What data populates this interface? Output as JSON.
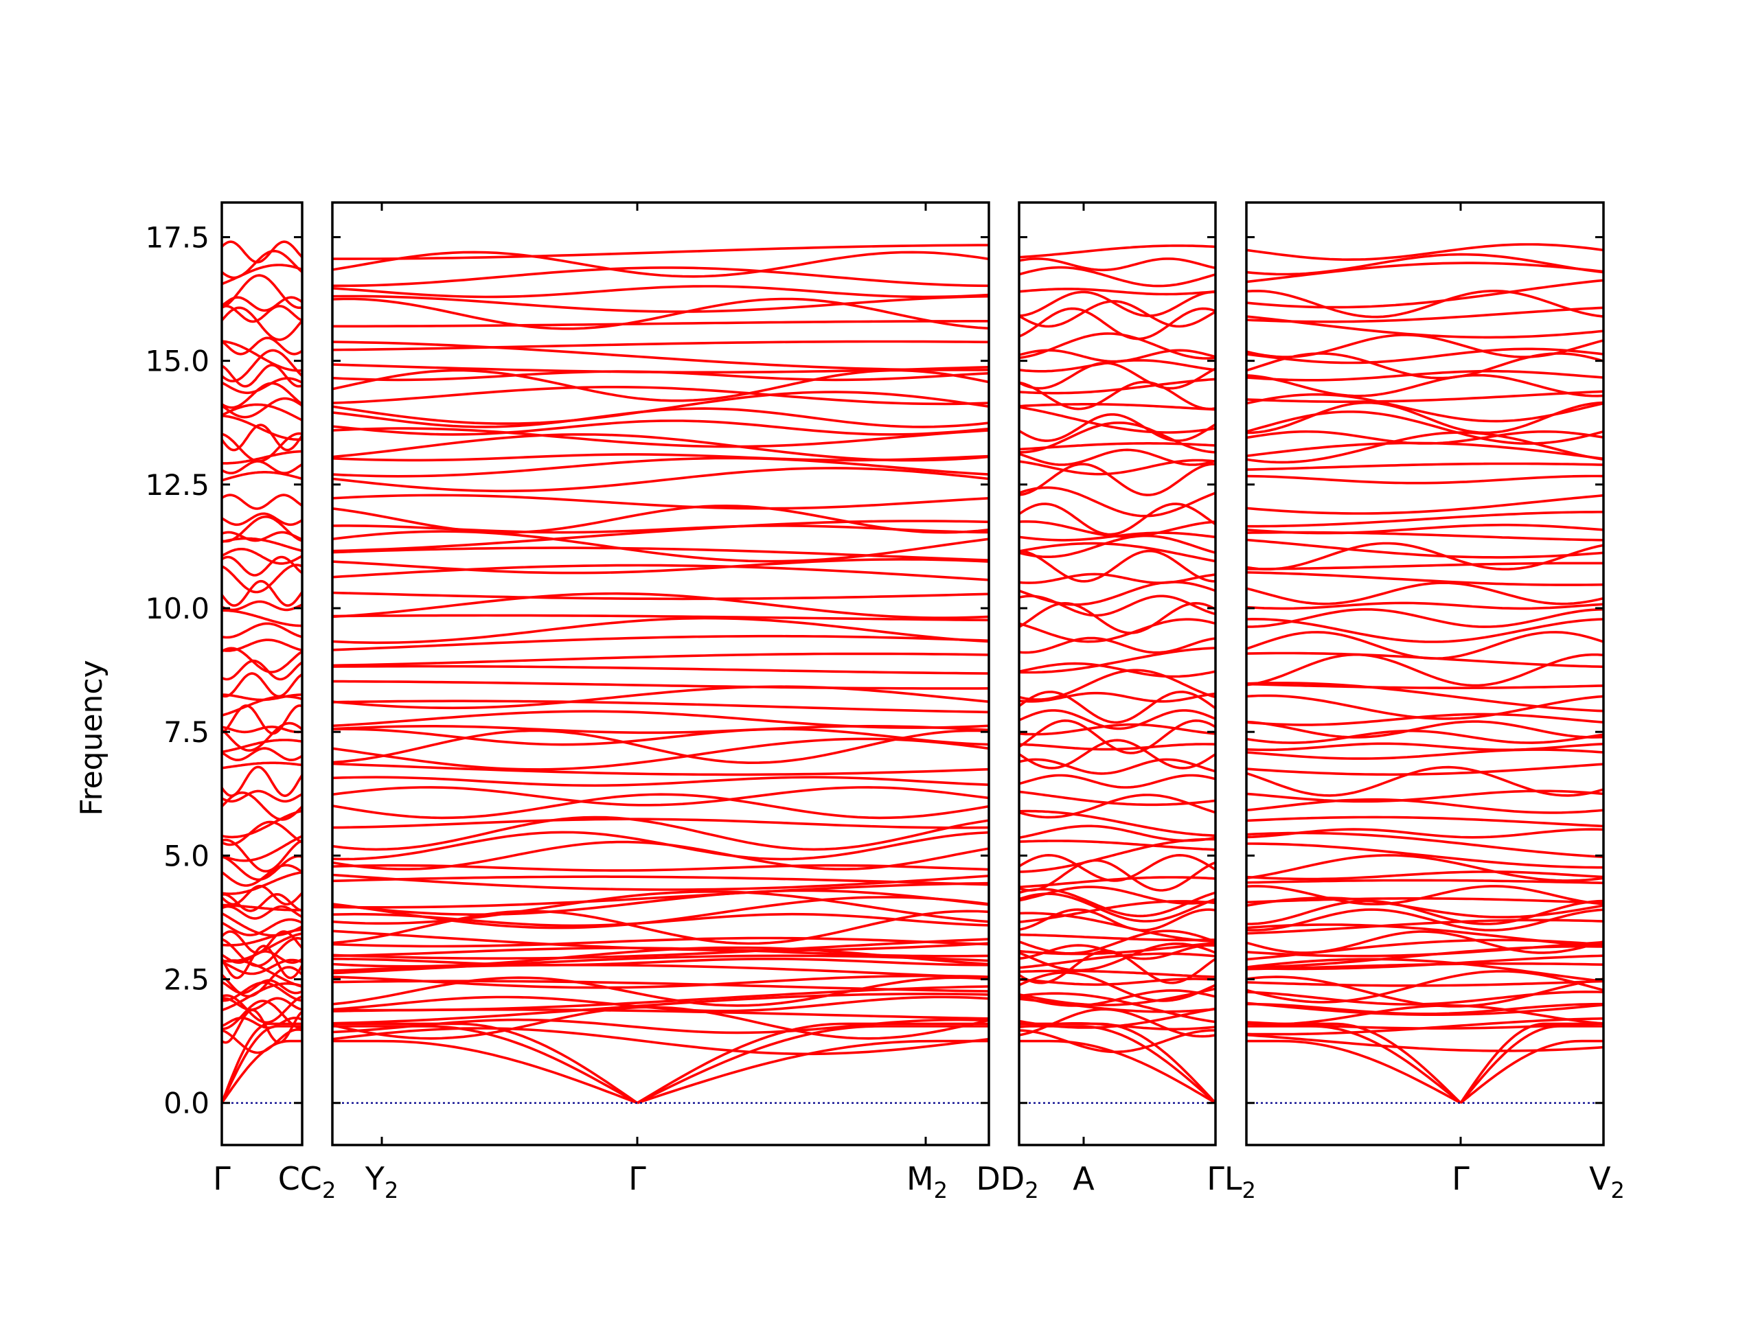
{
  "chart_data": {
    "type": "line",
    "title": "",
    "xlabel": "",
    "ylabel": "Frequency",
    "ylim": [
      -0.85,
      18.2
    ],
    "yticks": [
      0.0,
      2.5,
      5.0,
      7.5,
      10.0,
      12.5,
      15.0,
      17.5
    ],
    "ytick_labels": [
      "0.0",
      "2.5",
      "5.0",
      "7.5",
      "10.0",
      "12.5",
      "15.0",
      "17.5"
    ],
    "grid": false,
    "band_color": "#ff0000",
    "zero_line_color": "#00008b",
    "segments": [
      {
        "from": "Γ",
        "to": "C",
        "length": 0.12
      },
      {
        "from": "C₂",
        "to": "Y₂",
        "length": 0.07
      },
      {
        "from": "Y₂",
        "to": "Γ",
        "length": 0.39
      },
      {
        "from": "Γ",
        "to": "M₂",
        "length": 0.44
      },
      {
        "from": "M₂",
        "to": "D",
        "length": 0.1
      },
      {
        "from": "D₂",
        "to": "A",
        "length": 0.1
      },
      {
        "from": "A",
        "to": "Γ",
        "length": 0.2
      },
      {
        "from": "L₂",
        "to": "Γ",
        "length": 0.32
      },
      {
        "from": "Γ",
        "to": "V₂",
        "length": 0.22
      }
    ],
    "panels": [
      {
        "ticks": [
          "Γ",
          "C"
        ]
      },
      {
        "ticks": [
          "C₂",
          "Y₂",
          "Γ",
          "M₂",
          "D"
        ]
      },
      {
        "ticks": [
          "D₂",
          "A",
          "Γ"
        ]
      },
      {
        "ticks": [
          "L₂",
          "Γ",
          "V₂"
        ]
      }
    ],
    "x_tick_labels": [
      {
        "label": "Γ",
        "sub": ""
      },
      {
        "label": "CC",
        "sub": "2"
      },
      {
        "label": "Y",
        "sub": "2"
      },
      {
        "label": "Γ",
        "sub": ""
      },
      {
        "label": "M",
        "sub": "2"
      },
      {
        "label": "DD",
        "sub": "2"
      },
      {
        "label": "A",
        "sub": ""
      },
      {
        "label": "ΓL",
        "sub": "2"
      },
      {
        "label": "Γ",
        "sub": ""
      },
      {
        "label": "V",
        "sub": "2"
      }
    ],
    "gamma_acoustic_branches": "three acoustic branches reach 0.0 at every Γ point",
    "optical_band_levels": [
      1.25,
      1.55,
      1.62,
      1.78,
      1.9,
      2.0,
      2.12,
      2.25,
      2.35,
      2.45,
      2.6,
      2.75,
      2.85,
      2.95,
      3.05,
      3.15,
      3.25,
      3.35,
      3.55,
      3.7,
      3.85,
      3.95,
      4.05,
      4.2,
      4.45,
      4.6,
      4.75,
      5.0,
      5.2,
      5.45,
      5.65,
      6.0,
      6.2,
      6.5,
      6.8,
      7.05,
      7.2,
      7.4,
      7.55,
      7.75,
      8.0,
      8.2,
      8.45,
      8.75,
      8.95,
      9.25,
      9.55,
      9.8,
      10.05,
      10.3,
      10.6,
      10.85,
      11.05,
      11.25,
      11.45,
      11.6,
      11.8,
      12.15,
      12.6,
      12.85,
      13.05,
      13.25,
      13.45,
      13.65,
      13.85,
      14.05,
      14.3,
      14.5,
      14.7,
      14.9,
      15.1,
      15.3,
      15.75,
      15.95,
      16.15,
      16.4,
      16.7,
      16.95,
      17.2
    ]
  }
}
